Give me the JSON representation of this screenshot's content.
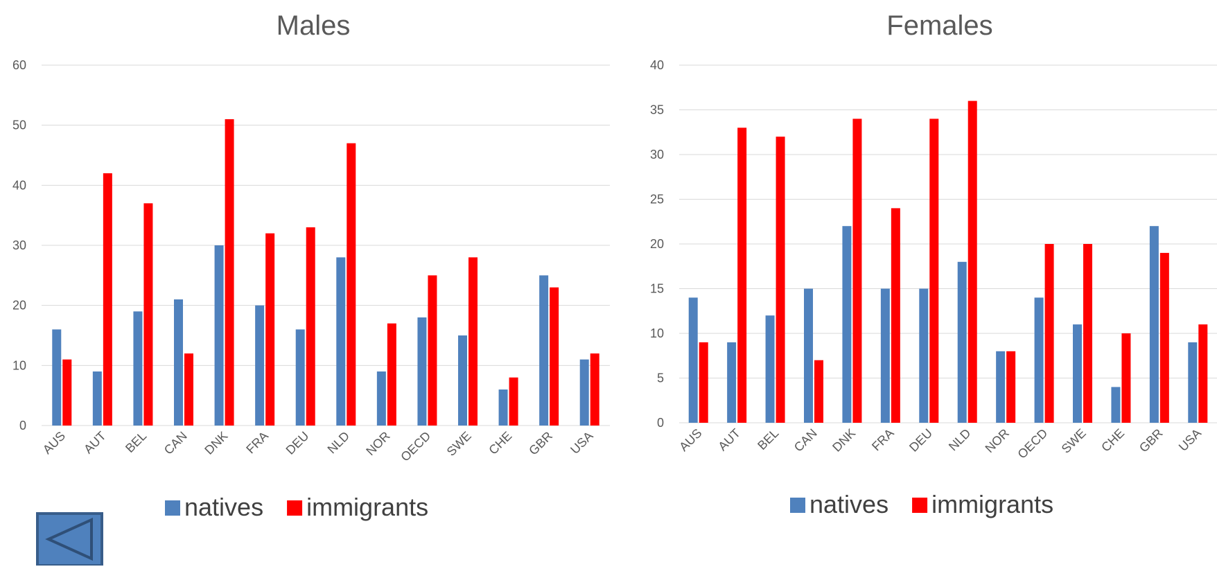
{
  "back_button": {
    "icon": "back-arrow-icon",
    "color": "#4F81BD"
  },
  "chart_data": [
    {
      "type": "bar",
      "title": "Males",
      "categories": [
        "AUS",
        "AUT",
        "BEL",
        "CAN",
        "DNK",
        "FRA",
        "DEU",
        "NLD",
        "NOR",
        "OECD",
        "SWE",
        "CHE",
        "GBR",
        "USA"
      ],
      "series": [
        {
          "name": "natives",
          "color": "#4F81BD",
          "values": [
            16,
            9,
            19,
            21,
            30,
            20,
            16,
            28,
            9,
            18,
            15,
            6,
            25,
            11
          ]
        },
        {
          "name": "immigrants",
          "color": "#FF0000",
          "values": [
            11,
            42,
            37,
            12,
            51,
            32,
            33,
            47,
            17,
            25,
            28,
            8,
            23,
            12
          ]
        }
      ],
      "ylim": [
        0,
        60
      ],
      "yticks": [
        "0",
        "10",
        "20",
        "30",
        "40",
        "50",
        "60"
      ],
      "grid": true,
      "legend_position": "bottom"
    },
    {
      "type": "bar",
      "title": "Females",
      "categories": [
        "AUS",
        "AUT",
        "BEL",
        "CAN",
        "DNK",
        "FRA",
        "DEU",
        "NLD",
        "NOR",
        "OECD",
        "SWE",
        "CHE",
        "GBR",
        "USA"
      ],
      "series": [
        {
          "name": "natives",
          "color": "#4F81BD",
          "values": [
            14,
            9,
            12,
            15,
            22,
            15,
            15,
            18,
            8,
            14,
            11,
            4,
            22,
            9
          ]
        },
        {
          "name": "immigrants",
          "color": "#FF0000",
          "values": [
            9,
            33,
            32,
            7,
            34,
            24,
            34,
            36,
            8,
            20,
            20,
            10,
            19,
            11
          ]
        }
      ],
      "ylim": [
        0,
        40
      ],
      "yticks": [
        "0",
        "5",
        "10",
        "15",
        "20",
        "25",
        "30",
        "35",
        "40"
      ],
      "grid": true,
      "legend_position": "bottom"
    }
  ]
}
